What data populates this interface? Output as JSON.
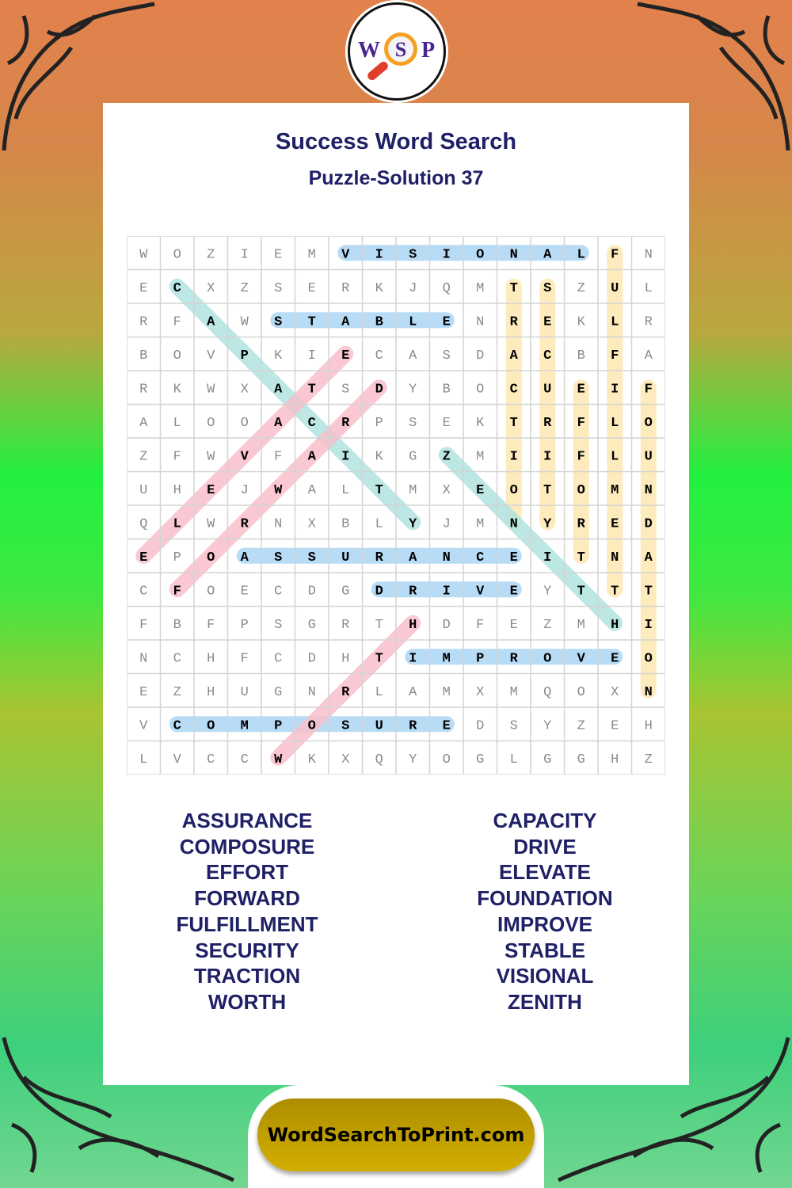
{
  "logo": {
    "letters": [
      "W",
      "S",
      "P"
    ]
  },
  "title": "Success Word Search",
  "subtitle": "Puzzle-Solution 37",
  "grid": [
    "WOZIEMVISIONALFN",
    "ECXZSERKJQMTSZUL",
    "RFAWSTABLENREKLR",
    "BOVPKIECASDACBFA",
    "RKWXATSDYBOCUEIF",
    "ALOOACRPSEKTRFLO",
    "ZFWVFAIKGZMIIFLU",
    "UHEJWALTMXEOTOMN",
    "QLWRNXBLYJMNYRED",
    "EPOASSURANCEITNA",
    "CFOECDGDRIVEYTTT",
    "FBFPSGRTHDFEZMHI",
    "NCHFCDHTIMPROVEO",
    "EZHUGNRLAMXMQOXN",
    "VCOMPOSUREDSYZEH",
    "LVCCWKXQYOGLGGHZ"
  ],
  "solutions": [
    {
      "word": "VISIONAL",
      "from": [
        0,
        6
      ],
      "to": [
        0,
        13
      ],
      "color": "#b8dcf6"
    },
    {
      "word": "STABLE",
      "from": [
        2,
        4
      ],
      "to": [
        2,
        9
      ],
      "color": "#b8dcf6"
    },
    {
      "word": "ASSURANCE",
      "from": [
        9,
        3
      ],
      "to": [
        9,
        11
      ],
      "color": "#b8dcf6"
    },
    {
      "word": "DRIVE",
      "from": [
        10,
        7
      ],
      "to": [
        10,
        11
      ],
      "color": "#b8dcf6"
    },
    {
      "word": "IMPROVE",
      "from": [
        12,
        8
      ],
      "to": [
        12,
        14
      ],
      "color": "#b8dcf6"
    },
    {
      "word": "COMPOSURE",
      "from": [
        14,
        1
      ],
      "to": [
        14,
        9
      ],
      "color": "#b8dcf6"
    },
    {
      "word": "TRACTION",
      "from": [
        1,
        11
      ],
      "to": [
        8,
        11
      ],
      "color": "#fdebbd"
    },
    {
      "word": "SECURITY",
      "from": [
        1,
        12
      ],
      "to": [
        8,
        12
      ],
      "color": "#fdebbd"
    },
    {
      "word": "EFFORT",
      "from": [
        4,
        13
      ],
      "to": [
        9,
        13
      ],
      "color": "#fdebbd"
    },
    {
      "word": "FULFILLMENT",
      "from": [
        0,
        14
      ],
      "to": [
        10,
        14
      ],
      "color": "#fdebbd"
    },
    {
      "word": "FOUNDATION",
      "from": [
        4,
        15
      ],
      "to": [
        13,
        15
      ],
      "color": "#fdebbd"
    },
    {
      "word": "CAPACITY",
      "from": [
        1,
        1
      ],
      "to": [
        8,
        8
      ],
      "color": "#b2e3e1"
    },
    {
      "word": "ZENITH",
      "from": [
        6,
        9
      ],
      "to": [
        11,
        14
      ],
      "color": "#b2e3e1"
    },
    {
      "word": "ELEVATE",
      "from": [
        3,
        6
      ],
      "to": [
        9,
        0
      ],
      "color": "#f8bfcc"
    },
    {
      "word": "FORWARD",
      "from": [
        10,
        1
      ],
      "to": [
        4,
        7
      ],
      "color": "#f8bfcc"
    },
    {
      "word": "WORTH",
      "from": [
        15,
        4
      ],
      "to": [
        11,
        8
      ],
      "color": "#f8bfcc"
    }
  ],
  "word_list": {
    "left": [
      "ASSURANCE",
      "COMPOSURE",
      "EFFORT",
      "FORWARD",
      "FULFILLMENT",
      "SECURITY",
      "TRACTION",
      "WORTH"
    ],
    "right": [
      "CAPACITY",
      "DRIVE",
      "ELEVATE",
      "FOUNDATION",
      "IMPROVE",
      "STABLE",
      "VISIONAL",
      "ZENITH"
    ]
  },
  "footer": {
    "site": "WordSearchToPrint.com"
  }
}
